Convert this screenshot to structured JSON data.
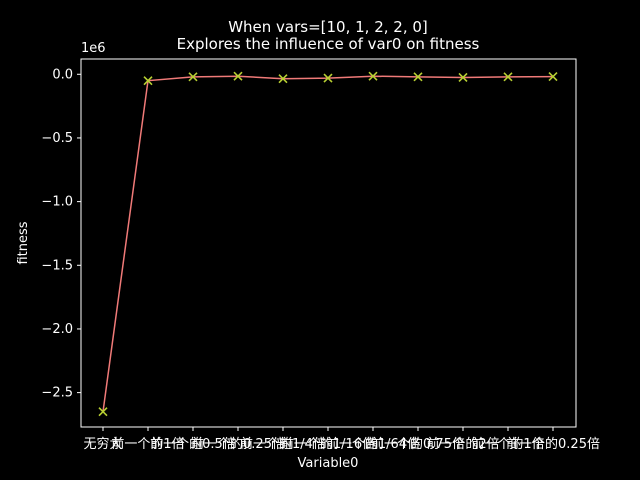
{
  "chart_data": {
    "type": "line",
    "title": "When vars=[10, 1, 2, 2, 0]",
    "subtitle": "Explores the influence of var0 on fitness",
    "xlabel": "Variable0",
    "ylabel": "fitness",
    "y_scale_label": "1e6",
    "y_ticks": [
      0.0,
      -0.5,
      -1.0,
      -1.5,
      -2.0,
      -2.5
    ],
    "y_tick_labels": [
      "0.0",
      "−0.5",
      "−1.0",
      "−1.5",
      "−2.0",
      "−2.5"
    ],
    "ylim": [
      -2.77,
      0.12
    ],
    "categories": [
      "无穷大",
      "前一个的1倍",
      "前一个的0.5倍",
      "前一个的0.25倍",
      "前一个的1/4倍",
      "前一个的1/16倍",
      "前一个的1/64倍",
      "前一个的0.75倍",
      "前一个的2倍",
      "前一个的1倍",
      "前一个的0.25倍"
    ],
    "values": [
      -2.65,
      -0.05,
      -0.02,
      -0.015,
      -0.035,
      -0.03,
      -0.015,
      -0.02,
      -0.025,
      -0.02,
      -0.018
    ],
    "line_color": "#f07a78",
    "marker_color": "#b8d032",
    "marker": "x",
    "grid": false
  }
}
